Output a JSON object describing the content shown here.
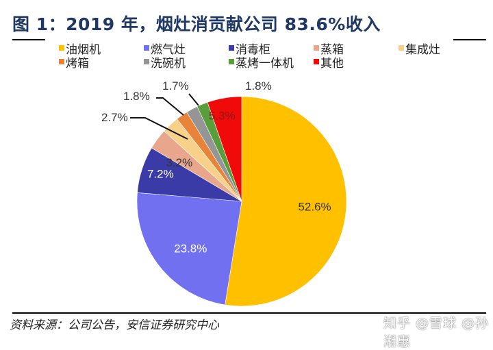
{
  "title": "图 1：2019 年，烟灶消贡献公司 83.6%收入",
  "source": "资料来源：公司公告，安信证券研究中心",
  "watermark": "知乎 @雪球 @孙湘惠",
  "chart_data": {
    "type": "pie",
    "title": "图 1：2019 年，烟灶消贡献公司 83.6%收入",
    "start_angle": "12 o'clock",
    "direction": "clockwise",
    "legend_position": "top",
    "slices": [
      {
        "label": "油烟机",
        "value": 52.6,
        "display": "52.6%",
        "color": "#FFC000",
        "label_color": "#333333"
      },
      {
        "label": "燃气灶",
        "value": 23.8,
        "display": "23.8%",
        "color": "#7070F0",
        "label_color": "#ffffff"
      },
      {
        "label": "消毒柜",
        "value": 7.2,
        "display": "7.2%",
        "color": "#3B3BA8",
        "label_color": "#ffffff"
      },
      {
        "label": "蒸箱",
        "value": 3.2,
        "display": "3.2%",
        "color": "#E8A68C",
        "label_color": "#333333"
      },
      {
        "label": "集成灶",
        "value": 2.7,
        "display": "2.7%",
        "color": "#F7D08A",
        "label_color": "#333333"
      },
      {
        "label": "烤箱",
        "value": 1.8,
        "display": "1.8%",
        "color": "#E8843A",
        "label_color": "#333333"
      },
      {
        "label": "洗碗机",
        "value": 1.8,
        "display": "1.8%",
        "color": "#959595",
        "label_color": "#333333"
      },
      {
        "label": "蒸烤一体机",
        "value": 1.7,
        "display": "1.7%",
        "color": "#5A9E3C",
        "label_color": "#333333"
      },
      {
        "label": "其他",
        "value": 5.3,
        "display": "5.3%",
        "color": "#F00A0A",
        "label_color": "#8B1A1A"
      }
    ],
    "legend_rows": [
      [
        "油烟机",
        "燃气灶",
        "消毒柜",
        "蒸箱",
        "集成灶"
      ],
      [
        "烤箱",
        "洗碗机",
        "蒸烤一体机",
        "其他"
      ]
    ]
  }
}
